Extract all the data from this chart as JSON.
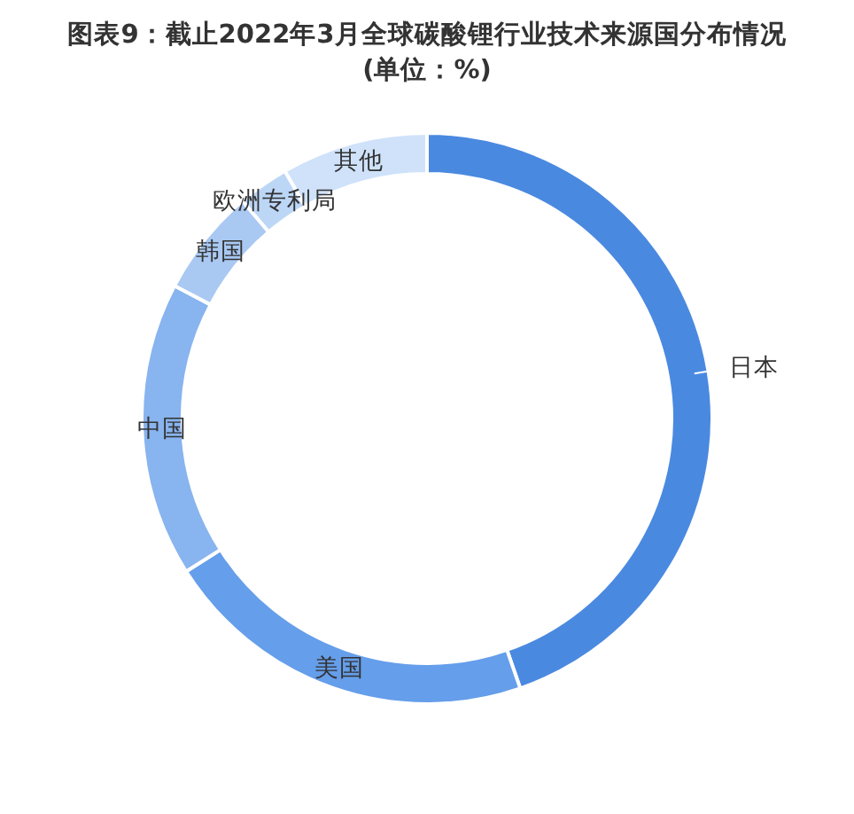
{
  "chart_data": {
    "type": "donut",
    "title": "图表9：截止2022年3月全球碳酸锂行业技术来源国分布情况",
    "subtitle": "(单位：%)",
    "categories": [
      "日本",
      "美国",
      "中国",
      "韩国",
      "欧洲专利局",
      "其他"
    ],
    "values": [
      44.7,
      21.3,
      16.7,
      6.1,
      2.9,
      8.3
    ],
    "colors": [
      "#4a89e0",
      "#659eea",
      "#88b4ef",
      "#a9c9f3",
      "#bcd6f6",
      "#cfe2fa"
    ]
  }
}
